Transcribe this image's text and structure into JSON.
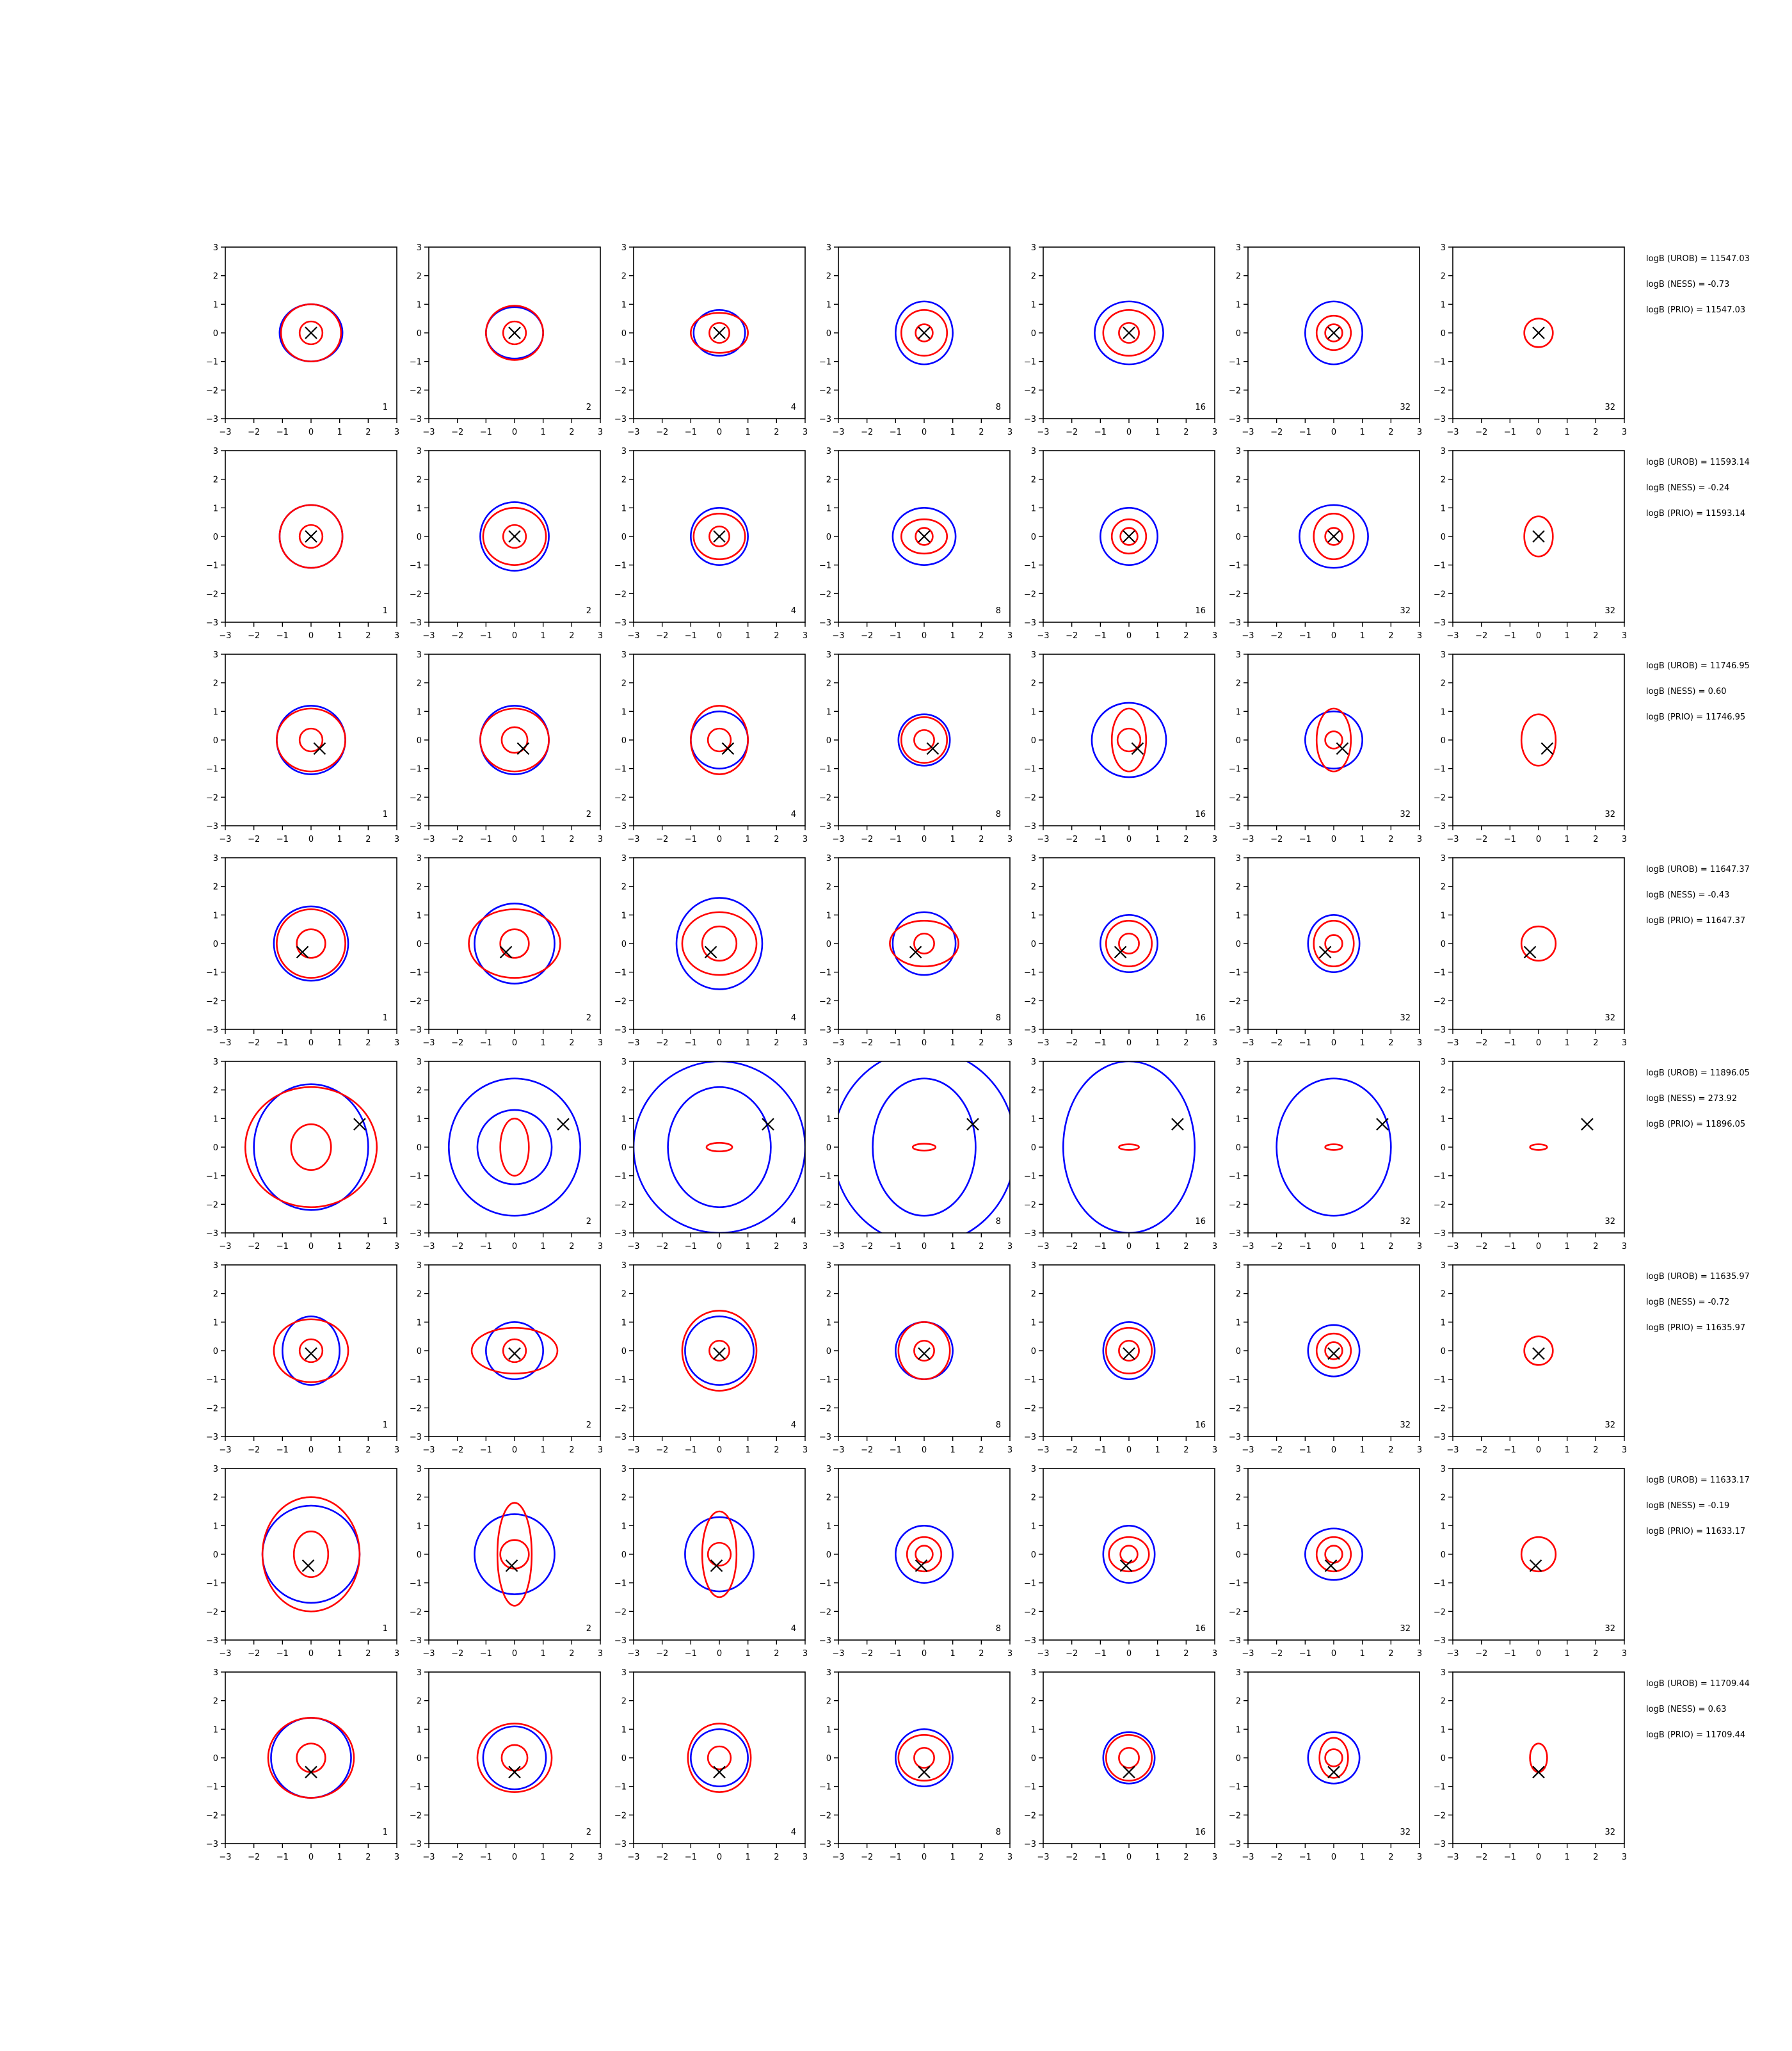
{
  "figure": {
    "rows": 8,
    "cols": 7,
    "colors": {
      "blue": "#0000ff",
      "red": "#ff0000",
      "marker": "#000000",
      "axis": "#000000"
    }
  },
  "chart_data": {
    "type": "contour-grid",
    "xlim": [
      -3,
      3
    ],
    "ylim": [
      -3,
      3
    ],
    "ticks": [
      -3,
      -2,
      -1,
      0,
      1,
      2,
      3
    ],
    "tick_labels": [
      "−3",
      "−2",
      "−1",
      "0",
      "1",
      "2",
      "3"
    ],
    "grid": false,
    "panel_labels": [
      "1",
      "2",
      "4",
      "8",
      "16",
      "32",
      "32"
    ],
    "rows": [
      {
        "marker": [
          0.0,
          0.0
        ],
        "annotations": [
          "logB (UROB) = 11547.03",
          "logB (NESS) = -0.73",
          "logB (PRIO) = 11547.03"
        ],
        "panels": [
          {
            "blue": [
              [
                1.1,
                1.0
              ]
            ],
            "red": [
              [
                0.4,
                0.4
              ],
              [
                1.05,
                1.0
              ]
            ]
          },
          {
            "blue": [
              [
                1.0,
                0.9
              ]
            ],
            "red": [
              [
                0.4,
                0.4
              ],
              [
                1.0,
                0.95
              ]
            ]
          },
          {
            "blue": [
              [
                0.9,
                0.8
              ]
            ],
            "red": [
              [
                0.35,
                0.35
              ],
              [
                1.0,
                0.7
              ]
            ]
          },
          {
            "blue": [
              [
                1.0,
                1.1
              ]
            ],
            "red": [
              [
                0.3,
                0.3
              ],
              [
                0.8,
                0.8
              ]
            ]
          },
          {
            "blue": [
              [
                1.2,
                1.1
              ]
            ],
            "red": [
              [
                0.35,
                0.35
              ],
              [
                0.9,
                0.8
              ]
            ]
          },
          {
            "blue": [
              [
                1.0,
                1.1
              ]
            ],
            "red": [
              [
                0.3,
                0.3
              ],
              [
                0.6,
                0.6
              ]
            ]
          },
          {
            "blue": [],
            "red": [
              [
                0.5,
                0.5
              ]
            ]
          }
        ]
      },
      {
        "marker": [
          0.0,
          0.0
        ],
        "annotations": [
          "logB (UROB) = 11593.14",
          "logB (NESS) = -0.24",
          "logB (PRIO) = 11593.14"
        ],
        "panels": [
          {
            "blue": [
              [
                1.1,
                1.1
              ]
            ],
            "red": [
              [
                0.4,
                0.4
              ],
              [
                1.1,
                1.1
              ]
            ]
          },
          {
            "blue": [
              [
                1.2,
                1.2
              ]
            ],
            "red": [
              [
                0.4,
                0.4
              ],
              [
                1.1,
                1.0
              ]
            ]
          },
          {
            "blue": [
              [
                1.0,
                1.0
              ]
            ],
            "red": [
              [
                0.35,
                0.35
              ],
              [
                0.9,
                0.8
              ]
            ]
          },
          {
            "blue": [
              [
                1.1,
                1.0
              ]
            ],
            "red": [
              [
                0.3,
                0.3
              ],
              [
                0.8,
                0.6
              ]
            ]
          },
          {
            "blue": [
              [
                1.0,
                1.0
              ]
            ],
            "red": [
              [
                0.3,
                0.3
              ],
              [
                0.6,
                0.6
              ]
            ]
          },
          {
            "blue": [
              [
                1.2,
                1.1
              ]
            ],
            "red": [
              [
                0.3,
                0.3
              ],
              [
                0.7,
                0.8
              ]
            ]
          },
          {
            "blue": [],
            "red": [
              [
                0.5,
                0.7
              ]
            ]
          }
        ]
      },
      {
        "marker": [
          0.3,
          -0.3
        ],
        "annotations": [
          "logB (UROB) = 11746.95",
          "logB (NESS) = 0.60",
          "logB (PRIO) = 11746.95"
        ],
        "panels": [
          {
            "blue": [
              [
                1.2,
                1.2
              ]
            ],
            "red": [
              [
                0.4,
                0.4
              ],
              [
                1.2,
                1.1
              ]
            ]
          },
          {
            "blue": [
              [
                1.2,
                1.2
              ]
            ],
            "red": [
              [
                0.45,
                0.45
              ],
              [
                1.2,
                1.1
              ]
            ]
          },
          {
            "blue": [
              [
                1.0,
                1.0
              ]
            ],
            "red": [
              [
                0.4,
                0.4
              ],
              [
                1.0,
                1.2
              ]
            ]
          },
          {
            "blue": [
              [
                0.9,
                0.9
              ]
            ],
            "red": [
              [
                0.35,
                0.35
              ],
              [
                0.8,
                0.8
              ]
            ]
          },
          {
            "blue": [
              [
                1.3,
                1.3
              ]
            ],
            "red": [
              [
                0.4,
                0.4
              ],
              [
                0.6,
                1.1
              ]
            ]
          },
          {
            "blue": [
              [
                1.0,
                1.0
              ]
            ],
            "red": [
              [
                0.3,
                0.3
              ],
              [
                0.6,
                1.1
              ]
            ]
          },
          {
            "blue": [],
            "red": [
              [
                0.6,
                0.9
              ]
            ]
          }
        ]
      },
      {
        "marker": [
          -0.3,
          -0.3
        ],
        "annotations": [
          "logB (UROB) = 11647.37",
          "logB (NESS) = -0.43",
          "logB (PRIO) = 11647.37"
        ],
        "panels": [
          {
            "blue": [
              [
                1.3,
                1.3
              ]
            ],
            "red": [
              [
                0.5,
                0.5
              ],
              [
                1.2,
                1.2
              ]
            ]
          },
          {
            "blue": [
              [
                1.4,
                1.4
              ]
            ],
            "red": [
              [
                0.5,
                0.5
              ],
              [
                1.6,
                1.2
              ]
            ]
          },
          {
            "blue": [
              [
                1.5,
                1.6
              ]
            ],
            "red": [
              [
                0.6,
                0.6
              ],
              [
                1.3,
                1.1
              ]
            ]
          },
          {
            "blue": [
              [
                1.1,
                1.1
              ]
            ],
            "red": [
              [
                0.35,
                0.35
              ],
              [
                1.2,
                0.8
              ]
            ]
          },
          {
            "blue": [
              [
                1.0,
                1.0
              ]
            ],
            "red": [
              [
                0.35,
                0.35
              ],
              [
                0.8,
                0.8
              ]
            ]
          },
          {
            "blue": [
              [
                0.9,
                1.0
              ]
            ],
            "red": [
              [
                0.3,
                0.3
              ],
              [
                0.7,
                0.8
              ]
            ]
          },
          {
            "blue": [],
            "red": [
              [
                0.6,
                0.6
              ]
            ]
          }
        ]
      },
      {
        "marker": [
          1.7,
          0.8
        ],
        "annotations": [
          "logB (UROB) = 11896.05",
          "logB (NESS) = 273.92",
          "logB (PRIO) = 11896.05"
        ],
        "panels": [
          {
            "blue": [
              [
                2.0,
                2.2
              ]
            ],
            "red": [
              [
                0.7,
                0.8
              ],
              [
                2.3,
                2.1
              ]
            ]
          },
          {
            "blue": [
              [
                1.3,
                1.3
              ],
              [
                2.3,
                2.4
              ]
            ],
            "red": [
              [
                0.5,
                1.0
              ]
            ]
          },
          {
            "blue": [
              [
                1.8,
                2.1
              ],
              [
                3.0,
                3.0
              ]
            ],
            "red": [
              [
                0.45,
                0.15
              ]
            ]
          },
          {
            "blue": [
              [
                1.8,
                2.4
              ],
              [
                3.2,
                3.4
              ]
            ],
            "red": [
              [
                0.4,
                0.12
              ]
            ]
          },
          {
            "blue": [
              [
                2.3,
                3.0
              ]
            ],
            "red": [
              [
                0.35,
                0.1
              ]
            ]
          },
          {
            "blue": [
              [
                2.0,
                2.4
              ]
            ],
            "red": [
              [
                0.3,
                0.1
              ]
            ]
          },
          {
            "blue": [],
            "red": [
              [
                0.3,
                0.1
              ]
            ]
          }
        ]
      },
      {
        "marker": [
          0.0,
          -0.1
        ],
        "annotations": [
          "logB (UROB) = 11635.97",
          "logB (NESS) = -0.72",
          "logB (PRIO) = 11635.97"
        ],
        "panels": [
          {
            "blue": [
              [
                1.0,
                1.2
              ]
            ],
            "red": [
              [
                0.4,
                0.4
              ],
              [
                1.3,
                1.1
              ]
            ]
          },
          {
            "blue": [
              [
                1.0,
                1.0
              ]
            ],
            "red": [
              [
                0.4,
                0.4
              ],
              [
                1.5,
                0.8
              ]
            ]
          },
          {
            "blue": [
              [
                1.2,
                1.2
              ]
            ],
            "red": [
              [
                0.35,
                0.35
              ],
              [
                1.3,
                1.4
              ]
            ]
          },
          {
            "blue": [
              [
                1.0,
                1.0
              ]
            ],
            "red": [
              [
                0.35,
                0.35
              ],
              [
                0.9,
                1.0
              ]
            ]
          },
          {
            "blue": [
              [
                0.9,
                1.0
              ]
            ],
            "red": [
              [
                0.35,
                0.35
              ],
              [
                0.8,
                0.8
              ]
            ]
          },
          {
            "blue": [
              [
                0.9,
                0.9
              ]
            ],
            "red": [
              [
                0.3,
                0.3
              ],
              [
                0.6,
                0.6
              ]
            ]
          },
          {
            "blue": [],
            "red": [
              [
                0.5,
                0.5
              ]
            ]
          }
        ]
      },
      {
        "marker": [
          -0.1,
          -0.4
        ],
        "annotations": [
          "logB (UROB) = 11633.17",
          "logB (NESS) = -0.19",
          "logB (PRIO) = 11633.17"
        ],
        "panels": [
          {
            "blue": [
              [
                1.7,
                1.7
              ]
            ],
            "red": [
              [
                0.6,
                0.8
              ],
              [
                1.7,
                2.0
              ]
            ]
          },
          {
            "blue": [
              [
                1.4,
                1.4
              ]
            ],
            "red": [
              [
                0.5,
                0.5
              ],
              [
                0.6,
                1.8
              ]
            ]
          },
          {
            "blue": [
              [
                1.2,
                1.3
              ]
            ],
            "red": [
              [
                0.4,
                0.4
              ],
              [
                0.6,
                1.5
              ]
            ]
          },
          {
            "blue": [
              [
                1.0,
                1.0
              ]
            ],
            "red": [
              [
                0.3,
                0.3
              ],
              [
                0.6,
                0.6
              ]
            ]
          },
          {
            "blue": [
              [
                0.9,
                1.0
              ]
            ],
            "red": [
              [
                0.3,
                0.3
              ],
              [
                0.7,
                0.6
              ]
            ]
          },
          {
            "blue": [
              [
                1.0,
                0.9
              ]
            ],
            "red": [
              [
                0.3,
                0.3
              ],
              [
                0.6,
                0.6
              ]
            ]
          },
          {
            "blue": [],
            "red": [
              [
                0.6,
                0.6
              ]
            ]
          }
        ]
      },
      {
        "marker": [
          0.0,
          -0.5
        ],
        "annotations": [
          "logB (UROB) = 11709.44",
          "logB (NESS) = 0.63",
          "logB (PRIO) = 11709.44"
        ],
        "panels": [
          {
            "blue": [
              [
                1.4,
                1.4
              ]
            ],
            "red": [
              [
                0.5,
                0.5
              ],
              [
                1.5,
                1.4
              ]
            ]
          },
          {
            "blue": [
              [
                1.1,
                1.1
              ]
            ],
            "red": [
              [
                0.45,
                0.45
              ],
              [
                1.3,
                1.2
              ]
            ]
          },
          {
            "blue": [
              [
                1.0,
                1.0
              ]
            ],
            "red": [
              [
                0.4,
                0.4
              ],
              [
                1.1,
                1.2
              ]
            ]
          },
          {
            "blue": [
              [
                1.0,
                1.0
              ]
            ],
            "red": [
              [
                0.35,
                0.35
              ],
              [
                0.9,
                0.8
              ]
            ]
          },
          {
            "blue": [
              [
                0.9,
                0.9
              ]
            ],
            "red": [
              [
                0.35,
                0.35
              ],
              [
                0.8,
                0.8
              ]
            ]
          },
          {
            "blue": [
              [
                0.9,
                0.9
              ]
            ],
            "red": [
              [
                0.3,
                0.3
              ],
              [
                0.5,
                0.7
              ]
            ]
          },
          {
            "blue": [],
            "red": [
              [
                0.3,
                0.5
              ]
            ]
          }
        ]
      }
    ]
  }
}
